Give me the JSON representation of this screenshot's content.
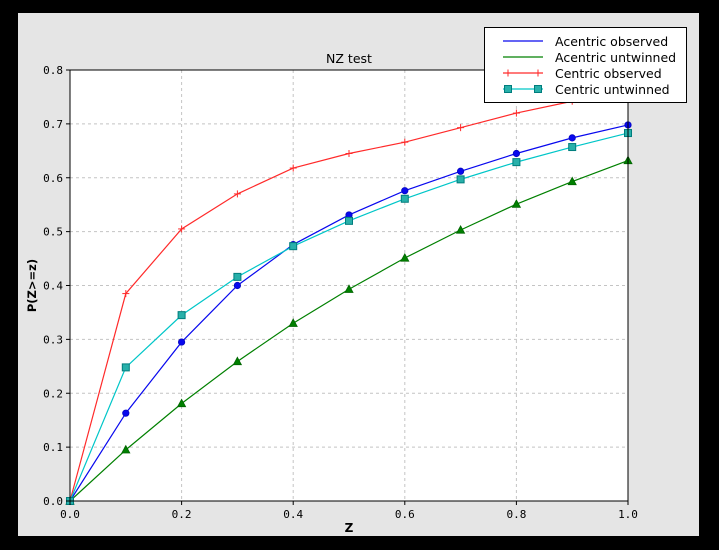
{
  "window": {
    "background_color": "#000000",
    "figure_background_color": "#e5e5e5",
    "axes_background_color": "#ffffff",
    "grid_color": "#c4c4c4"
  },
  "chart_data": {
    "type": "line",
    "title": "NZ test",
    "xlabel": "Z",
    "ylabel": "P(Z>=z)",
    "xlim": [
      0.0,
      1.0
    ],
    "ylim": [
      0.0,
      0.8
    ],
    "grid": true,
    "legend_position": "top-right",
    "x_ticks": [
      "0.0",
      "0.2",
      "0.4",
      "0.6",
      "0.8",
      "1.0"
    ],
    "y_ticks": [
      "0.0",
      "0.1",
      "0.2",
      "0.3",
      "0.4",
      "0.5",
      "0.6",
      "0.7",
      "0.8"
    ],
    "x": [
      0.0,
      0.1,
      0.2,
      0.3,
      0.4,
      0.5,
      0.6,
      0.7,
      0.8,
      0.9,
      1.0
    ],
    "series": [
      {
        "name": "Acentric observed",
        "color": "#0808ee",
        "marker": "circle",
        "marker_fill": "#0808ee",
        "marker_edge": "#0606c0",
        "legend_markers": false,
        "values": [
          0.0,
          0.163,
          0.295,
          0.4,
          0.476,
          0.531,
          0.576,
          0.612,
          0.645,
          0.674,
          0.698
        ]
      },
      {
        "name": "Acentric untwinned",
        "color": "#008000",
        "marker": "triangle",
        "marker_fill": "#008000",
        "marker_edge": "#006400",
        "legend_markers": false,
        "values": [
          0.0,
          0.095,
          0.181,
          0.259,
          0.33,
          0.393,
          0.451,
          0.503,
          0.551,
          0.593,
          0.632
        ]
      },
      {
        "name": "Centric observed",
        "color": "#ff2a2a",
        "marker": "plus",
        "marker_fill": "#ff2a2a",
        "marker_edge": "#ff2a2a",
        "legend_markers": true,
        "values": [
          0.0,
          0.385,
          0.505,
          0.57,
          0.618,
          0.645,
          0.666,
          0.693,
          0.72,
          0.742,
          0.762
        ]
      },
      {
        "name": "Centric untwinned",
        "color": "#00c6c8",
        "marker": "square",
        "marker_fill": "#28b0aa",
        "marker_edge": "#007d7d",
        "legend_markers": true,
        "values": [
          0.0,
          0.248,
          0.345,
          0.416,
          0.473,
          0.52,
          0.561,
          0.597,
          0.629,
          0.657,
          0.683
        ]
      }
    ]
  }
}
